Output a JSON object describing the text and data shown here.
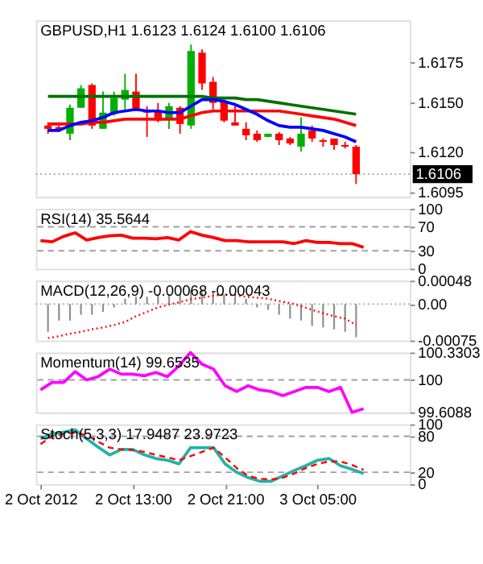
{
  "chart_data": [
    {
      "type": "candlestick",
      "title": "GBPUSD,H1  1.6123 1.6124 1.6100 1.6106",
      "categories": [
        null,
        null,
        null,
        null,
        null,
        null,
        null,
        null,
        null,
        null,
        null,
        null,
        null,
        null,
        null,
        null,
        null,
        null,
        null,
        null,
        null,
        null,
        null,
        null,
        null,
        null,
        null,
        null,
        null
      ],
      "ohlc": [
        [
          1.6136,
          1.6138,
          1.6131,
          1.6134
        ],
        [
          1.6135,
          1.6136,
          1.6132,
          1.6133
        ],
        [
          1.6131,
          1.6149,
          1.6127,
          1.6147
        ],
        [
          1.6147,
          1.6161,
          1.6147,
          1.6159
        ],
        [
          1.6161,
          1.6162,
          1.6134,
          1.6136
        ],
        [
          1.6134,
          1.6157,
          1.6134,
          1.6144
        ],
        [
          1.6143,
          1.6157,
          1.6142,
          1.6153
        ],
        [
          1.6152,
          1.6168,
          1.6146,
          1.6158
        ],
        [
          1.6157,
          1.6168,
          1.6145,
          1.6145
        ],
        [
          1.6145,
          1.6148,
          1.6129,
          1.6144
        ],
        [
          1.6145,
          1.615,
          1.6138,
          1.6139
        ],
        [
          1.614,
          1.615,
          1.6134,
          1.6148
        ],
        [
          1.6147,
          1.6148,
          1.6131,
          1.6137
        ],
        [
          1.6136,
          1.6186,
          1.6134,
          1.6182
        ],
        [
          1.6181,
          1.6183,
          1.6158,
          1.6162
        ],
        [
          1.6163,
          1.6166,
          1.6146,
          1.615
        ],
        [
          1.6151,
          1.6152,
          1.6138,
          1.6139
        ],
        [
          1.6138,
          1.6148,
          1.6136,
          1.6136
        ],
        [
          1.6134,
          1.6138,
          1.6127,
          1.613
        ],
        [
          1.6131,
          1.6133,
          1.6126,
          1.6127
        ],
        [
          1.6129,
          1.6131,
          1.6129,
          1.6131
        ],
        [
          1.6131,
          1.6132,
          1.6124,
          1.6127
        ],
        [
          1.6128,
          1.6129,
          1.6124,
          1.6125
        ],
        [
          1.6123,
          1.6141,
          1.612,
          1.6131
        ],
        [
          1.6133,
          1.6136,
          1.6126,
          1.6128
        ],
        [
          1.6127,
          1.6128,
          1.6123,
          1.6126
        ],
        [
          1.6128,
          1.6128,
          1.6121,
          1.6124
        ],
        [
          1.6124,
          1.6126,
          1.6122,
          1.6123
        ],
        [
          1.6123,
          1.6124,
          1.61,
          1.6106
        ]
      ],
      "colors": [
        "#ff0000",
        "#ff0000",
        "#00b000",
        "#00b000",
        "#ff0000",
        "#00b000",
        "#00b000",
        "#00b000",
        "#ff0000",
        "#ff0000",
        "#ff0000",
        "#00b000",
        "#ff0000",
        "#00b000",
        "#ff0000",
        "#ff0000",
        "#ff0000",
        "#ff0000",
        "#ff0000",
        "#ff0000",
        "#00b000",
        "#ff0000",
        "#ff0000",
        "#00b000",
        "#ff0000",
        "#ff0000",
        "#ff0000",
        "#ff0000",
        "#ff0000"
      ],
      "series": [
        {
          "type": "line",
          "color": "#007000",
          "values": [
            1.6154,
            1.6154,
            1.6154,
            1.6154,
            1.6154,
            1.6154,
            1.6154,
            1.6154,
            1.6154,
            1.6154,
            1.6154,
            1.6154,
            1.6154,
            1.6154,
            1.6154,
            1.6153,
            1.6153,
            1.6153,
            1.6152,
            1.6152,
            1.6151,
            1.615,
            1.6149,
            1.6148,
            1.6147,
            1.6146,
            1.6145,
            1.6144,
            1.6143
          ]
        },
        {
          "type": "line",
          "color": "#ff0000",
          "values": [
            1.6137,
            1.6137,
            1.6137,
            1.6137,
            1.6138,
            1.6138,
            1.6139,
            1.614,
            1.614,
            1.614,
            1.614,
            1.614,
            1.614,
            1.6142,
            1.6144,
            1.6145,
            1.6145,
            1.6145,
            1.6145,
            1.6145,
            1.6145,
            1.6145,
            1.6144,
            1.6143,
            1.6142,
            1.6141,
            1.614,
            1.6138,
            1.6136
          ]
        },
        {
          "type": "line",
          "color": "#0000ff",
          "values": [
            1.6133,
            1.6133,
            1.6136,
            1.6138,
            1.6139,
            1.6141,
            1.6144,
            1.6145,
            1.6146,
            1.6145,
            1.6145,
            1.6144,
            1.6144,
            1.6148,
            1.6152,
            1.6152,
            1.6151,
            1.6149,
            1.6146,
            1.6143,
            1.6139,
            1.6136,
            1.6135,
            1.6135,
            1.6134,
            1.6133,
            1.6131,
            1.6129,
            1.6126
          ]
        }
      ],
      "ylim": [
        1.6092,
        1.6201
      ],
      "yticks": [
        {
          "value": 1.6175,
          "label": "1.6175"
        },
        {
          "value": 1.615,
          "label": "1.6150"
        },
        {
          "value": 1.612,
          "label": "1.6120"
        },
        {
          "value": 1.6095,
          "label": "1.6095"
        }
      ],
      "ref_lines": [
        {
          "axis": "y",
          "value": 1.6106,
          "label": "1.6106",
          "line_style": "dotted",
          "color": "#a0a0a0"
        }
      ],
      "tick_labels": "y"
    },
    {
      "type": "line",
      "title": "RSI(14) 35.5644",
      "categories": [
        null,
        null,
        null,
        null,
        null,
        null,
        null,
        null,
        null,
        null,
        null,
        null,
        null,
        null,
        null,
        null,
        null,
        null,
        null,
        null,
        null,
        null,
        null,
        null,
        null,
        null,
        null,
        null,
        null
      ],
      "series": [
        {
          "color": "#ff0000",
          "values": [
            47,
            45,
            54,
            60,
            48,
            52,
            55,
            56,
            51,
            51,
            50,
            52,
            48,
            62,
            56,
            52,
            47,
            47,
            45,
            45,
            45,
            45,
            42,
            47,
            44,
            44,
            42,
            42,
            35.5644
          ]
        }
      ],
      "ylim": [
        0,
        100
      ],
      "yticks": [
        100,
        70,
        30,
        0
      ],
      "ref_lines": [
        {
          "axis": "y",
          "value": 70,
          "line_style": "dashed",
          "color": "#a0a0a0"
        },
        {
          "axis": "y",
          "value": 30,
          "line_style": "dashed",
          "color": "#a0a0a0"
        }
      ],
      "tick_labels": "y"
    },
    {
      "type": "line",
      "title": "MACD(12,26,9) -0.00068 -0.00043",
      "categories": [
        null,
        null,
        null,
        null,
        null,
        null,
        null,
        null,
        null,
        null,
        null,
        null,
        null,
        null,
        null,
        null,
        null,
        null,
        null,
        null,
        null,
        null,
        null,
        null,
        null,
        null,
        null,
        null,
        null
      ],
      "series": [
        {
          "type": "bar",
          "color": "#909090",
          "values": [
            -0.00057,
            -0.00034,
            -0.00034,
            -0.00022,
            -0.00022,
            -0.00016,
            -7e-05,
            0.00011,
            0.00015,
            0.00015,
            0.0002,
            0.0002,
            0.0002,
            0.00029,
            0.00029,
            0.00024,
            0.0002,
            0.00015,
            0.00011,
            -7e-05,
            -0.00012,
            -0.00022,
            -0.0003,
            -0.00034,
            -0.00045,
            -0.00048,
            -0.00052,
            -0.00057,
            -0.00068
          ]
        },
        {
          "type": "line",
          "color": "#ff0000",
          "line_style": "dotted",
          "values": [
            -0.0007,
            -0.00066,
            -0.00061,
            -0.00057,
            -0.00052,
            -0.00048,
            -0.00043,
            -0.00037,
            -0.00025,
            -0.00016,
            -7e-05,
            -1e-05,
            4e-05,
            0.0001,
            0.00013,
            0.00017,
            0.0002,
            0.00018,
            0.00015,
            0.00013,
            0.00011,
            6e-05,
            2e-05,
            -4e-05,
            -0.00012,
            -0.00019,
            -0.00025,
            -0.0003,
            -0.00043
          ]
        }
      ],
      "ylim": [
        -0.00075,
        0.00048
      ],
      "yticks": [
        0.00048,
        {
          "value": 0,
          "label": "0.00"
        },
        -0.00075
      ],
      "ref_lines": [
        {
          "axis": "y",
          "value": 0,
          "line_style": "dotted",
          "color": "#a0a0a0"
        }
      ],
      "tick_labels": "y"
    },
    {
      "type": "line",
      "title": "Momentum(14) 99.6535",
      "categories": [
        null,
        null,
        null,
        null,
        null,
        null,
        null,
        null,
        null,
        null,
        null,
        null,
        null,
        null,
        null,
        null,
        null,
        null,
        null,
        null,
        null,
        null,
        null,
        null,
        null,
        null,
        null,
        null,
        null
      ],
      "series": [
        {
          "color": "#ff00ff",
          "values": [
            99.88,
            99.97,
            99.97,
            100.1,
            100.0,
            100.04,
            100.13,
            100.07,
            100.07,
            100.05,
            100.09,
            100.04,
            100.17,
            100.33,
            100.19,
            100.13,
            99.93,
            99.86,
            99.93,
            99.88,
            99.86,
            99.81,
            99.86,
            99.91,
            99.91,
            99.86,
            99.91,
            99.61,
            99.6535
          ]
        }
      ],
      "ylim": [
        99.6088,
        100.3303
      ],
      "yticks": [
        100.3303,
        100,
        99.6088
      ],
      "ref_lines": [
        {
          "axis": "y",
          "value": 100,
          "line_style": "dashed",
          "color": "#a0a0a0"
        }
      ],
      "tick_labels": "y"
    },
    {
      "type": "line",
      "title": "Stoch(5,3,3) 17.9487 23.9723",
      "x": [
        "2012-10-02T05:00",
        "2012-10-02T06:00",
        "2012-10-02T07:00",
        "2012-10-02T08:00",
        "2012-10-02T09:00",
        "2012-10-02T10:00",
        "2012-10-02T11:00",
        "2012-10-02T12:00",
        "2012-10-02T13:00",
        "2012-10-02T14:00",
        "2012-10-02T15:00",
        "2012-10-02T16:00",
        "2012-10-02T17:00",
        "2012-10-02T18:00",
        "2012-10-02T19:00",
        "2012-10-02T20:00",
        "2012-10-02T21:00",
        "2012-10-02T22:00",
        "2012-10-02T23:00",
        "2012-10-03T00:00",
        "2012-10-03T01:00",
        "2012-10-03T02:00",
        "2012-10-03T03:00",
        "2012-10-03T04:00",
        "2012-10-03T05:00",
        "2012-10-03T06:00",
        "2012-10-03T07:00",
        "2012-10-03T08:00",
        "2012-10-03T09:00"
      ],
      "xlim": [
        "2012-10-02T04:36",
        "2012-10-03T13:00"
      ],
      "xticks": [
        {
          "value": "2012-10-02T05:00",
          "label": "2 Oct 2012"
        },
        {
          "value": "2012-10-02T13:00",
          "label": "2 Oct 13:00"
        },
        {
          "value": "2012-10-02T21:00",
          "label": "2 Oct 21:00"
        },
        {
          "value": "2012-10-03T05:00",
          "label": "3 Oct 05:00"
        }
      ],
      "series": [
        {
          "color": "#20b2aa",
          "values": [
            76,
            84,
            87,
            91,
            76,
            62,
            49,
            58,
            58,
            49,
            43,
            40,
            34,
            61,
            61,
            61,
            34,
            20,
            11,
            5,
            5,
            14,
            23,
            31,
            40,
            43,
            31,
            25,
            17.9487
          ]
        },
        {
          "color": "#ff0000",
          "line_style": "dashed",
          "values": [
            67,
            80,
            84,
            86,
            82,
            71,
            61,
            58,
            57,
            54,
            49,
            45,
            40,
            47,
            54,
            61,
            45,
            27,
            14,
            9,
            8,
            11,
            18,
            27,
            34,
            38,
            38,
            32,
            23.9723
          ]
        }
      ],
      "ylim": [
        0,
        100
      ],
      "yticks": [
        100,
        80,
        20,
        0
      ],
      "ref_lines": [
        {
          "axis": "y",
          "value": 80,
          "line_style": "dashed",
          "color": "#a0a0a0"
        },
        {
          "axis": "y",
          "value": 20,
          "line_style": "dashed",
          "color": "#a0a0a0"
        }
      ]
    }
  ]
}
